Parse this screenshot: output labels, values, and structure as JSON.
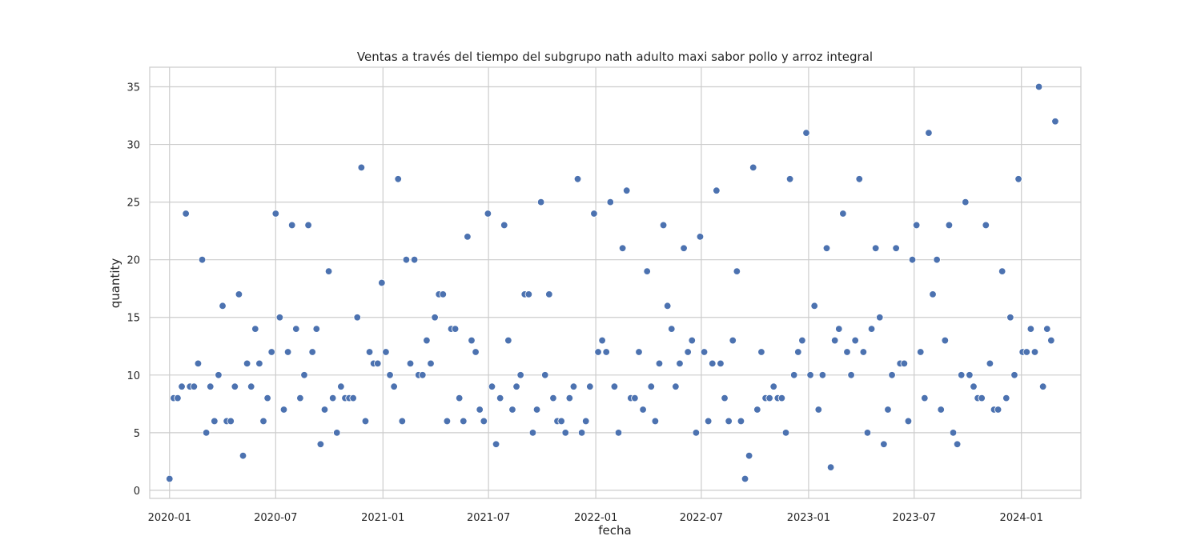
{
  "chart_data": {
    "type": "scatter",
    "title": "Ventas a través del tiempo del subgrupo nath adulto maxi sabor pollo y arroz integral",
    "xlabel": "fecha",
    "ylabel": "quantity",
    "xlim": [
      "2019-11-28",
      "2024-04-12"
    ],
    "ylim": [
      -0.7,
      36.7
    ],
    "grid": true,
    "x_ticks": [
      "2020-01",
      "2020-07",
      "2021-01",
      "2021-07",
      "2022-01",
      "2022-07",
      "2023-01",
      "2023-07",
      "2024-01"
    ],
    "y_ticks": [
      0,
      5,
      10,
      15,
      20,
      25,
      30,
      35
    ],
    "x": [
      "2020-01-01",
      "2020-01-08",
      "2020-01-15",
      "2020-01-22",
      "2020-01-29",
      "2020-02-05",
      "2020-02-12",
      "2020-02-19",
      "2020-02-26",
      "2020-03-04",
      "2020-03-11",
      "2020-03-18",
      "2020-03-25",
      "2020-04-01",
      "2020-04-08",
      "2020-04-15",
      "2020-04-22",
      "2020-04-29",
      "2020-05-06",
      "2020-05-13",
      "2020-05-20",
      "2020-05-27",
      "2020-06-03",
      "2020-06-10",
      "2020-06-17",
      "2020-06-24",
      "2020-07-01",
      "2020-07-08",
      "2020-07-15",
      "2020-07-22",
      "2020-07-29",
      "2020-08-05",
      "2020-08-12",
      "2020-08-19",
      "2020-08-26",
      "2020-09-02",
      "2020-09-09",
      "2020-09-16",
      "2020-09-23",
      "2020-09-30",
      "2020-10-07",
      "2020-10-14",
      "2020-10-21",
      "2020-10-28",
      "2020-11-04",
      "2020-11-11",
      "2020-11-18",
      "2020-11-25",
      "2020-12-02",
      "2020-12-09",
      "2020-12-16",
      "2020-12-23",
      "2020-12-30",
      "2021-01-06",
      "2021-01-13",
      "2021-01-20",
      "2021-01-27",
      "2021-02-03",
      "2021-02-10",
      "2021-02-17",
      "2021-02-24",
      "2021-03-03",
      "2021-03-10",
      "2021-03-17",
      "2021-03-24",
      "2021-03-31",
      "2021-04-07",
      "2021-04-14",
      "2021-04-21",
      "2021-04-28",
      "2021-05-05",
      "2021-05-12",
      "2021-05-19",
      "2021-05-26",
      "2021-06-02",
      "2021-06-09",
      "2021-06-16",
      "2021-06-23",
      "2021-06-30",
      "2021-07-07",
      "2021-07-14",
      "2021-07-21",
      "2021-07-28",
      "2021-08-04",
      "2021-08-11",
      "2021-08-18",
      "2021-08-25",
      "2021-09-01",
      "2021-09-08",
      "2021-09-15",
      "2021-09-22",
      "2021-09-29",
      "2021-10-06",
      "2021-10-13",
      "2021-10-20",
      "2021-10-27",
      "2021-11-03",
      "2021-11-10",
      "2021-11-17",
      "2021-11-24",
      "2021-12-01",
      "2021-12-08",
      "2021-12-15",
      "2021-12-22",
      "2021-12-29",
      "2022-01-05",
      "2022-01-12",
      "2022-01-19",
      "2022-01-26",
      "2022-02-02",
      "2022-02-09",
      "2022-02-16",
      "2022-02-23",
      "2022-03-02",
      "2022-03-09",
      "2022-03-16",
      "2022-03-23",
      "2022-03-30",
      "2022-04-06",
      "2022-04-13",
      "2022-04-20",
      "2022-04-27",
      "2022-05-04",
      "2022-05-11",
      "2022-05-18",
      "2022-05-25",
      "2022-06-01",
      "2022-06-08",
      "2022-06-15",
      "2022-06-22",
      "2022-06-29",
      "2022-07-06",
      "2022-07-13",
      "2022-07-20",
      "2022-07-27",
      "2022-08-03",
      "2022-08-10",
      "2022-08-17",
      "2022-08-24",
      "2022-08-31",
      "2022-09-07",
      "2022-09-14",
      "2022-09-21",
      "2022-09-28",
      "2022-10-05",
      "2022-10-12",
      "2022-10-19",
      "2022-10-26",
      "2022-11-02",
      "2022-11-09",
      "2022-11-16",
      "2022-11-23",
      "2022-11-30",
      "2022-12-07",
      "2022-12-14",
      "2022-12-21",
      "2022-12-28",
      "2023-01-04",
      "2023-01-11",
      "2023-01-18",
      "2023-01-25",
      "2023-02-01",
      "2023-02-08",
      "2023-02-15",
      "2023-02-22",
      "2023-03-01",
      "2023-03-08",
      "2023-03-15",
      "2023-03-22",
      "2023-03-29",
      "2023-04-05",
      "2023-04-12",
      "2023-04-19",
      "2023-04-26",
      "2023-05-03",
      "2023-05-10",
      "2023-05-17",
      "2023-05-24",
      "2023-05-31",
      "2023-06-07",
      "2023-06-14",
      "2023-06-21",
      "2023-06-28",
      "2023-07-05",
      "2023-07-12",
      "2023-07-19",
      "2023-07-26",
      "2023-08-02",
      "2023-08-09",
      "2023-08-16",
      "2023-08-23",
      "2023-08-30",
      "2023-09-06",
      "2023-09-13",
      "2023-09-20",
      "2023-09-27",
      "2023-10-04",
      "2023-10-11",
      "2023-10-18",
      "2023-10-25",
      "2023-11-01",
      "2023-11-08",
      "2023-11-15",
      "2023-11-22",
      "2023-11-29",
      "2023-12-06",
      "2023-12-13",
      "2023-12-20",
      "2023-12-27",
      "2024-01-03",
      "2024-01-10",
      "2024-01-17",
      "2024-01-24",
      "2024-01-31",
      "2024-02-07",
      "2024-02-14",
      "2024-02-21",
      "2024-02-28"
    ],
    "y": [
      1,
      8,
      8,
      9,
      24,
      9,
      9,
      11,
      20,
      5,
      9,
      6,
      10,
      16,
      6,
      6,
      9,
      17,
      3,
      11,
      9,
      14,
      11,
      6,
      8,
      12,
      24,
      15,
      7,
      12,
      23,
      14,
      8,
      10,
      23,
      12,
      14,
      4,
      7,
      19,
      8,
      5,
      9,
      8,
      8,
      8,
      15,
      28,
      6,
      12,
      11,
      11,
      18,
      12,
      10,
      9,
      27,
      6,
      20,
      11,
      20,
      10,
      10,
      13,
      11,
      15,
      17,
      17,
      6,
      14,
      14,
      8,
      6,
      22,
      13,
      12,
      7,
      6,
      24,
      9,
      4,
      8,
      23,
      13,
      7,
      9,
      10,
      17,
      17,
      5,
      7,
      25,
      10,
      17,
      8,
      6,
      6,
      5,
      8,
      9,
      27,
      5,
      6,
      9,
      24,
      12,
      13,
      12,
      25,
      9,
      5,
      21,
      26,
      8,
      8,
      12,
      7,
      19,
      9,
      6,
      11,
      23,
      16,
      14,
      9,
      11,
      21,
      12,
      13,
      5,
      22,
      12,
      6,
      11,
      26,
      11,
      8,
      6,
      13,
      19,
      6,
      1,
      3,
      28,
      7,
      12,
      8,
      8,
      9,
      8,
      8,
      5,
      27,
      10,
      12,
      13,
      31,
      10,
      16,
      7,
      10,
      21,
      2,
      13,
      14,
      24,
      12,
      10,
      13,
      27,
      12,
      5,
      14,
      21,
      15,
      4,
      7,
      10,
      21,
      11,
      11,
      6,
      20,
      23,
      12,
      8,
      31,
      17,
      20,
      7,
      13,
      23,
      5,
      4,
      10,
      25,
      10,
      9,
      8,
      8,
      23,
      11,
      7,
      7,
      19,
      8,
      15,
      10,
      27,
      12,
      12,
      14,
      12,
      35,
      9,
      14,
      13,
      32
    ],
    "marker_color": "#4c72b0"
  }
}
